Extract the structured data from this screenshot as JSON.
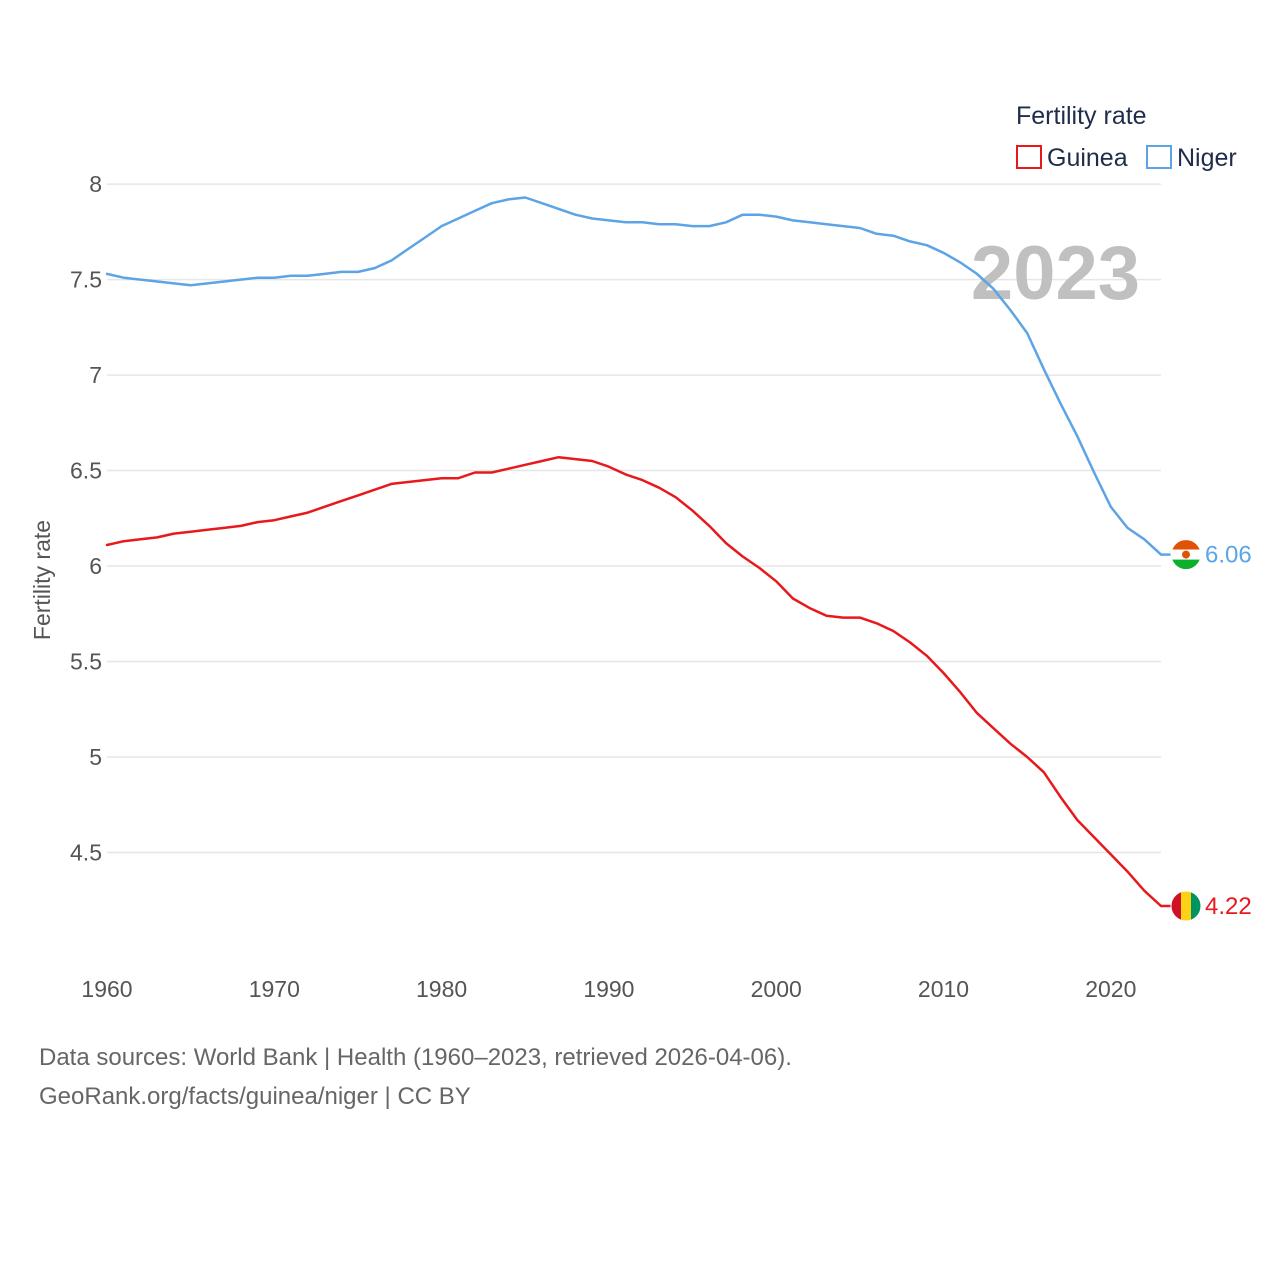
{
  "legend": {
    "title": "Fertility rate"
  },
  "watermark_year": "2023",
  "footer": {
    "line1": "Data sources: World Bank | Health (1960–2023, retrieved 2026-04-06).",
    "line2": "GeoRank.org/facts/guinea/niger | CC BY"
  },
  "chart_data": {
    "type": "line",
    "title": "",
    "xlabel": "",
    "ylabel": "Fertility rate",
    "xlim": [
      1960,
      2023
    ],
    "ylim": [
      4.0,
      8.1
    ],
    "x_ticks": [
      1960,
      1970,
      1980,
      1990,
      2000,
      2010,
      2020
    ],
    "y_ticks": [
      4.5,
      5,
      5.5,
      6,
      6.5,
      7,
      7.5,
      8
    ],
    "y_tick_labels": [
      "4.5",
      "5",
      "5.5",
      "6",
      "6.5",
      "7",
      "7.5",
      "8"
    ],
    "grid": "horizontal",
    "legend_position": "top-right",
    "x": [
      1960,
      1961,
      1962,
      1963,
      1964,
      1965,
      1966,
      1967,
      1968,
      1969,
      1970,
      1971,
      1972,
      1973,
      1974,
      1975,
      1976,
      1977,
      1978,
      1979,
      1980,
      1981,
      1982,
      1983,
      1984,
      1985,
      1986,
      1987,
      1988,
      1989,
      1990,
      1991,
      1992,
      1993,
      1994,
      1995,
      1996,
      1997,
      1998,
      1999,
      2000,
      2001,
      2002,
      2003,
      2004,
      2005,
      2006,
      2007,
      2008,
      2009,
      2010,
      2011,
      2012,
      2013,
      2014,
      2015,
      2016,
      2017,
      2018,
      2019,
      2020,
      2021,
      2022,
      2023
    ],
    "series": [
      {
        "name": "Guinea",
        "color": "#e8191c",
        "end_label": "4.22",
        "flag": "guinea-flag",
        "values": [
          6.11,
          6.13,
          6.14,
          6.15,
          6.17,
          6.18,
          6.19,
          6.2,
          6.21,
          6.23,
          6.24,
          6.26,
          6.28,
          6.31,
          6.34,
          6.37,
          6.4,
          6.43,
          6.44,
          6.45,
          6.46,
          6.46,
          6.49,
          6.49,
          6.51,
          6.53,
          6.55,
          6.57,
          6.56,
          6.55,
          6.52,
          6.48,
          6.45,
          6.41,
          6.36,
          6.29,
          6.21,
          6.12,
          6.05,
          5.99,
          5.92,
          5.83,
          5.78,
          5.74,
          5.73,
          5.73,
          5.7,
          5.66,
          5.6,
          5.53,
          5.44,
          5.34,
          5.23,
          5.15,
          5.07,
          5.0,
          4.92,
          4.79,
          4.67,
          4.58,
          4.49,
          4.4,
          4.3,
          4.22
        ]
      },
      {
        "name": "Niger",
        "color": "#5da4e6",
        "end_label": "6.06",
        "flag": "niger-flag",
        "values": [
          7.53,
          7.51,
          7.5,
          7.49,
          7.48,
          7.47,
          7.48,
          7.49,
          7.5,
          7.51,
          7.51,
          7.52,
          7.52,
          7.53,
          7.54,
          7.54,
          7.56,
          7.6,
          7.66,
          7.72,
          7.78,
          7.82,
          7.86,
          7.9,
          7.92,
          7.93,
          7.9,
          7.87,
          7.84,
          7.82,
          7.81,
          7.8,
          7.8,
          7.79,
          7.79,
          7.78,
          7.78,
          7.8,
          7.84,
          7.84,
          7.83,
          7.81,
          7.8,
          7.79,
          7.78,
          7.77,
          7.74,
          7.73,
          7.7,
          7.68,
          7.64,
          7.59,
          7.53,
          7.45,
          7.34,
          7.22,
          7.03,
          6.85,
          6.68,
          6.49,
          6.31,
          6.2,
          6.14,
          6.06
        ]
      }
    ]
  }
}
